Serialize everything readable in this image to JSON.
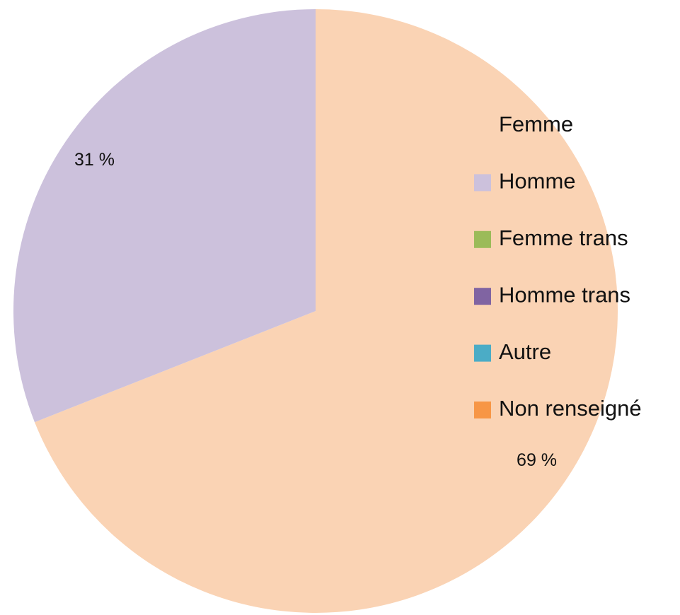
{
  "chart_data": {
    "type": "pie",
    "categories": [
      "Femme",
      "Homme",
      "Femme trans",
      "Homme trans",
      "Autre",
      "Non renseigné"
    ],
    "values": [
      69,
      31,
      0,
      0,
      0,
      0
    ],
    "value_labels": [
      "69 %",
      "31 %",
      null,
      null,
      null,
      null
    ],
    "colors": [
      "#fad3b4",
      "#ccc1dc",
      "#9bbb59",
      "#8064a2",
      "#4bacc6",
      "#f79646"
    ],
    "legend": "right"
  }
}
